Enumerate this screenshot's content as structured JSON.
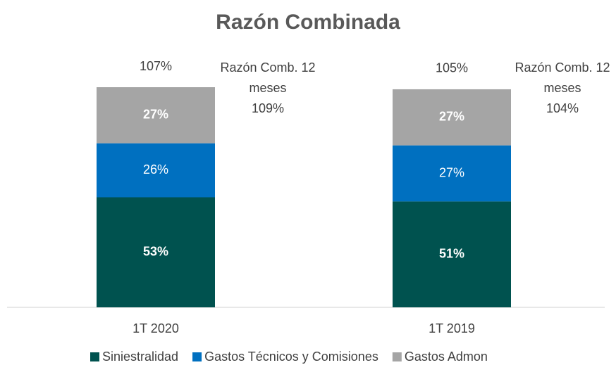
{
  "chart_data": {
    "type": "stacked_bar",
    "title": "Razón Combinada",
    "categories": [
      "1T 2020",
      "1T 2019"
    ],
    "series": [
      {
        "name": "Siniestralidad",
        "color": "#00524f",
        "values": [
          53,
          51
        ],
        "value_labels": [
          "53%",
          "51%"
        ],
        "label_bold": true
      },
      {
        "name": "Gastos Técnicos y Comisiones",
        "color": "#0070c0",
        "values": [
          26,
          27
        ],
        "value_labels": [
          "26%",
          "27%"
        ],
        "label_bold": false
      },
      {
        "name": "Gastos Admon",
        "color": "#a5a5a5",
        "values": [
          27,
          27
        ],
        "value_labels": [
          "27%",
          "27%"
        ],
        "label_bold": true
      }
    ],
    "totals": [
      107,
      105
    ],
    "totals_labels": [
      "107%",
      "105%"
    ],
    "annotations": [
      {
        "lines": [
          "Razón Comb. 12",
          "meses",
          "109%"
        ]
      },
      {
        "lines": [
          "Razón Comb. 12",
          "meses",
          "104%"
        ]
      }
    ],
    "legend": "bottom"
  }
}
